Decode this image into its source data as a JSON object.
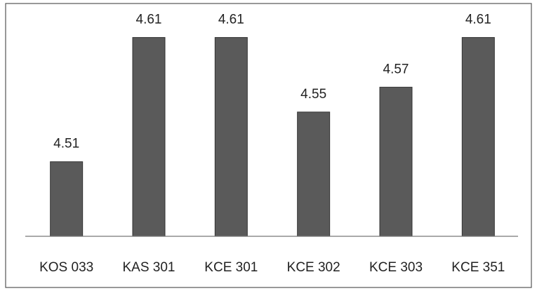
{
  "chart_data": {
    "type": "bar",
    "categories": [
      "KOS 033",
      "KAS 301",
      "KCE 301",
      "KCE 302",
      "KCE 303",
      "KCE 351"
    ],
    "values": [
      4.51,
      4.61,
      4.61,
      4.55,
      4.57,
      4.61
    ],
    "color": "#5a5a5a",
    "ylim": [
      4.45,
      4.63
    ]
  }
}
